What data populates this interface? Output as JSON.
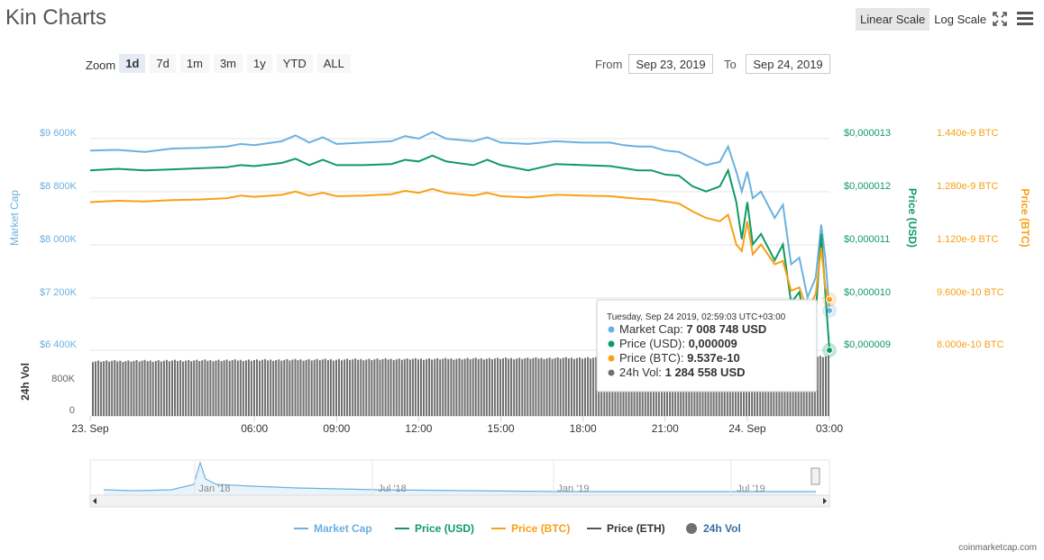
{
  "title": "Kin Charts",
  "scale": {
    "linear": "Linear Scale",
    "log": "Log Scale"
  },
  "zoom": {
    "label": "Zoom",
    "buttons": [
      "1d",
      "7d",
      "1m",
      "3m",
      "1y",
      "YTD",
      "ALL"
    ],
    "active": "1d"
  },
  "range": {
    "from_label": "From",
    "from_value": "Sep 23, 2019",
    "to_label": "To",
    "to_value": "Sep 24, 2019"
  },
  "credit": "coinmarketcap.com",
  "colors": {
    "market_cap": "#6cb0e0",
    "price_usd": "#119a63",
    "price_btc": "#f7a116",
    "price_eth": "#555555",
    "volume": "#707070"
  },
  "chart_data": {
    "type": "line",
    "x_ticks": [
      "23. Sep",
      "06:00",
      "09:00",
      "12:00",
      "15:00",
      "18:00",
      "21:00",
      "24. Sep",
      "03:00"
    ],
    "x_range_hours": [
      0,
      27
    ],
    "axes": {
      "market_cap": {
        "title": "Market Cap",
        "ticks": [
          "$9 600K",
          "$8 800K",
          "$8 000K",
          "$7 200K",
          "$6 400K"
        ],
        "range": [
          6400000,
          9600000
        ]
      },
      "price_usd": {
        "title": "Price (USD)",
        "ticks": [
          "$0,000013",
          "$0,000012",
          "$0,000011",
          "$0,000010",
          "$0,000009"
        ],
        "range": [
          9e-06,
          1.3e-05
        ]
      },
      "price_btc": {
        "title": "Price (BTC)",
        "ticks": [
          "1.440e-9 BTC",
          "1.280e-9 BTC",
          "1.120e-9 BTC",
          "9.600e-10 BTC",
          "8.000e-10 BTC"
        ],
        "range": [
          8e-10,
          1.44e-09
        ]
      },
      "volume": {
        "title": "24h Vol",
        "ticks": [
          "800K",
          "0"
        ],
        "range": [
          0,
          1300000
        ]
      }
    },
    "series": [
      {
        "name": "Market Cap",
        "axis": "market_cap",
        "x": [
          0,
          1,
          2,
          3,
          4,
          5,
          5.5,
          6,
          7,
          7.5,
          8,
          8.5,
          9,
          10,
          11,
          11.5,
          12,
          12.5,
          13,
          14,
          14.5,
          15,
          16,
          17,
          18,
          19,
          19.5,
          20,
          20.5,
          21,
          21.5,
          22,
          22.5,
          23,
          23.3,
          23.6,
          23.8,
          24,
          24.2,
          24.5,
          25,
          25.3,
          25.6,
          25.9,
          26.2,
          26.5,
          26.7,
          26.85,
          27
        ],
        "values": [
          9420000,
          9430000,
          9400000,
          9450000,
          9460000,
          9480000,
          9520000,
          9500000,
          9560000,
          9650000,
          9540000,
          9620000,
          9520000,
          9540000,
          9560000,
          9640000,
          9600000,
          9700000,
          9600000,
          9560000,
          9620000,
          9540000,
          9520000,
          9560000,
          9540000,
          9540000,
          9500000,
          9480000,
          9480000,
          9420000,
          9400000,
          9300000,
          9200000,
          9250000,
          9480000,
          9100000,
          8800000,
          9100000,
          8700000,
          8800000,
          8400000,
          8600000,
          7700000,
          7800000,
          7200000,
          7500000,
          8300000,
          7800000,
          7000000
        ]
      },
      {
        "name": "Price (USD)",
        "axis": "price_usd",
        "x": [
          0,
          1,
          2,
          3,
          4,
          5,
          5.5,
          6,
          7,
          7.5,
          8,
          8.5,
          9,
          10,
          11,
          11.5,
          12,
          12.5,
          13,
          14,
          14.5,
          15,
          16,
          17,
          18,
          19,
          19.5,
          20,
          20.5,
          21,
          21.5,
          22,
          22.5,
          23,
          23.3,
          23.6,
          23.8,
          24,
          24.2,
          24.5,
          25,
          25.3,
          25.6,
          25.9,
          26.2,
          26.5,
          26.7,
          26.85,
          27
        ],
        "values": [
          1.24e-05,
          1.243e-05,
          1.24e-05,
          1.242e-05,
          1.244e-05,
          1.246e-05,
          1.25e-05,
          1.248e-05,
          1.254e-05,
          1.262e-05,
          1.25e-05,
          1.26e-05,
          1.25e-05,
          1.25e-05,
          1.252e-05,
          1.26e-05,
          1.257e-05,
          1.268e-05,
          1.257e-05,
          1.25e-05,
          1.26e-05,
          1.25e-05,
          1.24e-05,
          1.252e-05,
          1.25e-05,
          1.248e-05,
          1.244e-05,
          1.24e-05,
          1.24e-05,
          1.232e-05,
          1.23e-05,
          1.21e-05,
          1.2e-05,
          1.21e-05,
          1.24e-05,
          1.18e-05,
          1.11e-05,
          1.18e-05,
          1.1e-05,
          1.12e-05,
          1.07e-05,
          1.1e-05,
          9.9e-06,
          1.01e-05,
          9.3e-06,
          9.7e-06,
          1.12e-05,
          1.01e-05,
          9e-06
        ]
      },
      {
        "name": "Price (BTC)",
        "axis": "price_btc",
        "x": [
          0,
          1,
          2,
          3,
          4,
          5,
          5.5,
          6,
          7,
          7.5,
          8,
          8.5,
          9,
          10,
          11,
          11.5,
          12,
          12.5,
          13,
          14,
          14.5,
          15,
          16,
          17,
          18,
          19,
          19.5,
          20,
          20.5,
          21,
          21.5,
          22,
          22.5,
          23,
          23.3,
          23.6,
          23.8,
          24,
          24.2,
          24.5,
          25,
          25.3,
          25.6,
          25.9,
          26.2,
          26.5,
          26.7,
          26.85,
          27
        ],
        "values": [
          1.248e-09,
          1.252e-09,
          1.25e-09,
          1.254e-09,
          1.256e-09,
          1.26e-09,
          1.268e-09,
          1.264e-09,
          1.27e-09,
          1.28e-09,
          1.268e-09,
          1.276e-09,
          1.266e-09,
          1.268e-09,
          1.272e-09,
          1.282e-09,
          1.276e-09,
          1.288e-09,
          1.276e-09,
          1.268e-09,
          1.276e-09,
          1.266e-09,
          1.262e-09,
          1.27e-09,
          1.268e-09,
          1.266e-09,
          1.262e-09,
          1.258e-09,
          1.256e-09,
          1.25e-09,
          1.244e-09,
          1.22e-09,
          1.2e-09,
          1.19e-09,
          1.21e-09,
          1.12e-09,
          1.1e-09,
          1.19e-09,
          1.09e-09,
          1.12e-09,
          1.06e-09,
          1.07e-09,
          9.8e-10,
          9.9e-10,
          9.2e-10,
          9.7e-10,
          1.11e-09,
          9.9e-10,
          9.537e-10
        ]
      }
    ],
    "volume": {
      "name": "24h Vol",
      "start": 1180000,
      "end": 1284558
    },
    "navigator": {
      "labels": [
        "Jan '18",
        "Jul '18",
        "Jan '19",
        "Jul '19"
      ]
    },
    "legend": {
      "placement": "bottom",
      "items": [
        "Market Cap",
        "Price (USD)",
        "Price (BTC)",
        "Price (ETH)",
        "24h Vol"
      ]
    },
    "tooltip": {
      "header": "Tuesday, Sep 24 2019, 02:59:03 UTC+03:00",
      "rows": [
        {
          "label": "Market Cap:",
          "value": "7 008 748 USD"
        },
        {
          "label": "Price (USD):",
          "value": "0,000009"
        },
        {
          "label": "Price (BTC):",
          "value": "9.537e-10"
        },
        {
          "label": "24h Vol:",
          "value": "1 284 558 USD"
        }
      ]
    }
  }
}
